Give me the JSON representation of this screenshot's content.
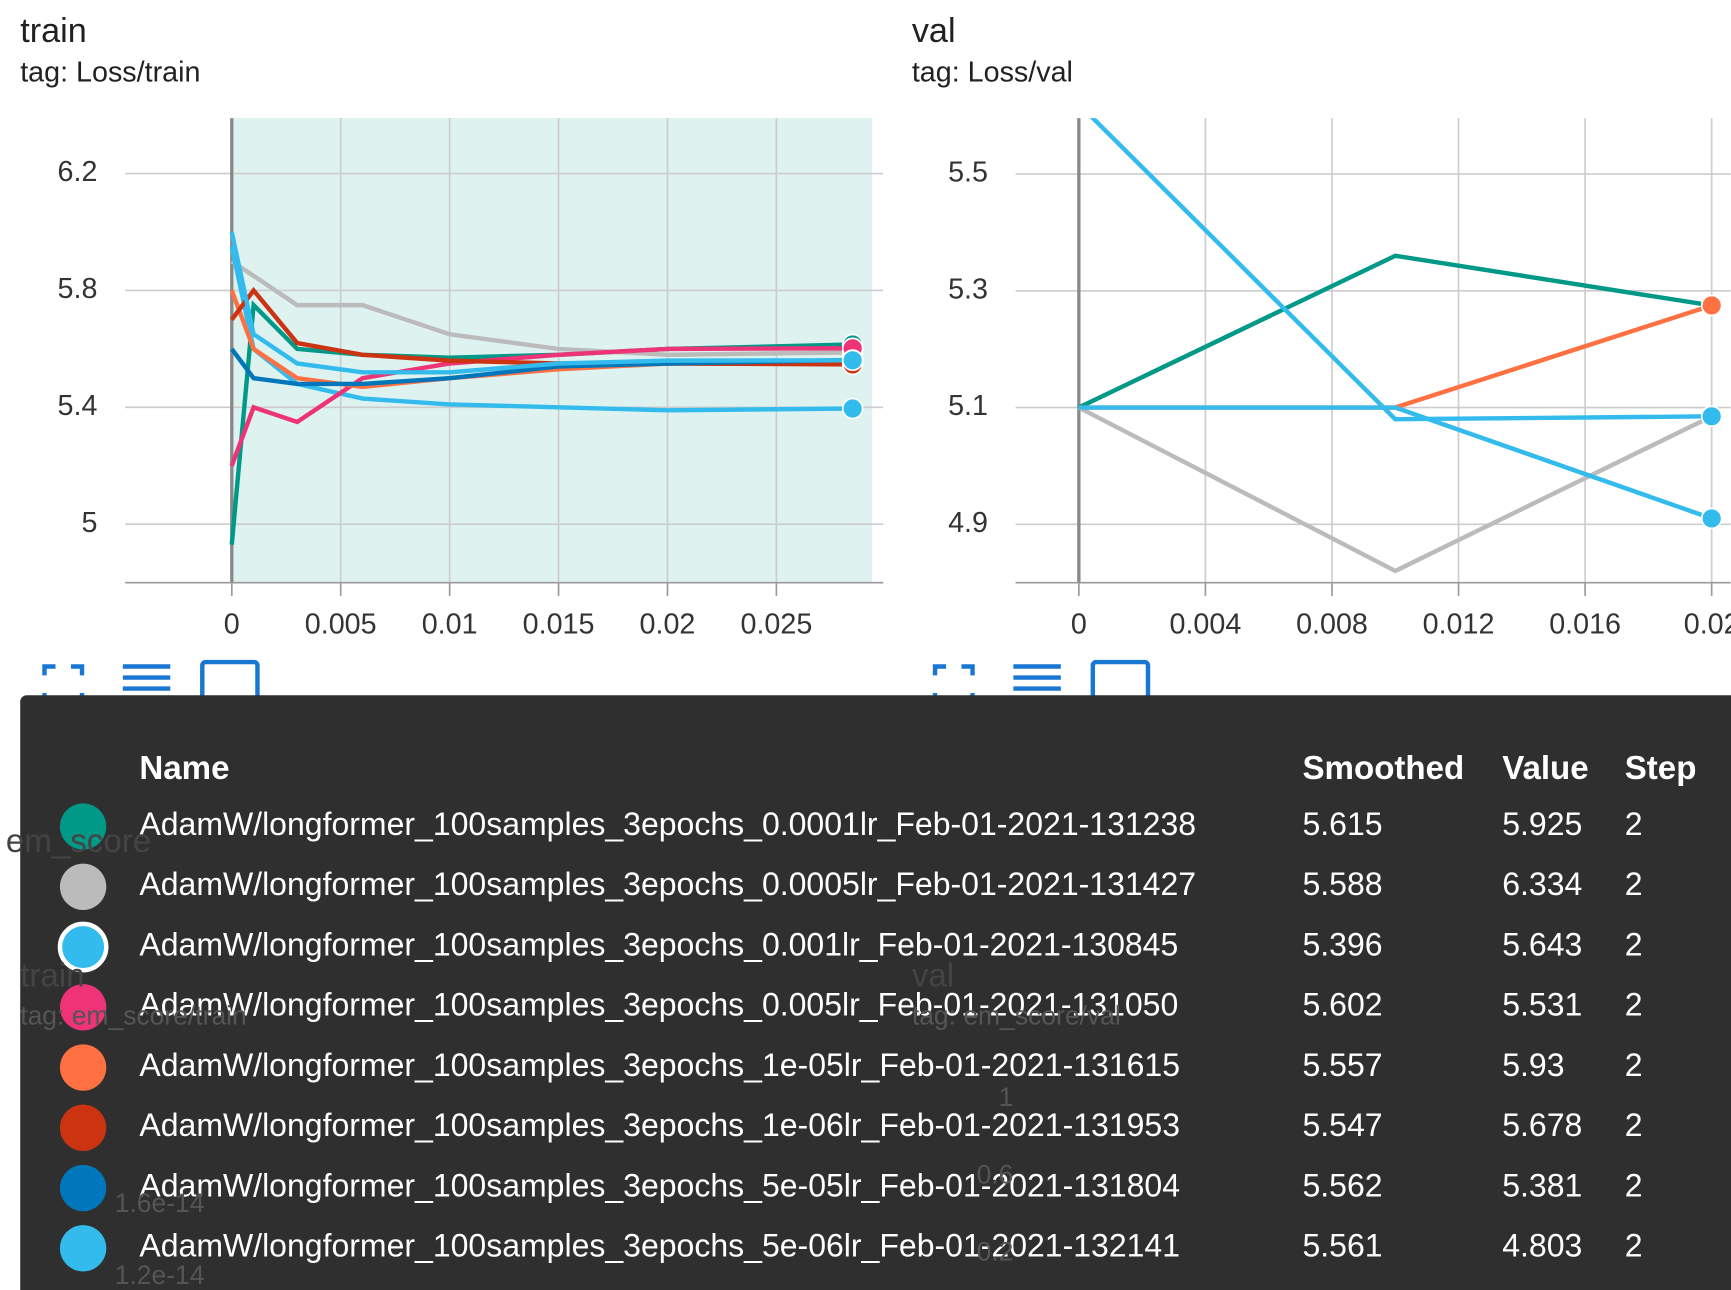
{
  "charts": [
    {
      "type": "line",
      "title": "train",
      "tag": "tag: Loss/train",
      "x": [
        0,
        0.001,
        0.003,
        0.006,
        0.01,
        0.015,
        0.02,
        0.0285
      ],
      "xlim": [
        -0.0049,
        0.0299
      ],
      "ylim": [
        4.8,
        6.39
      ],
      "xticks": [
        0,
        0.005,
        0.01,
        0.015,
        0.02,
        0.025
      ],
      "yticks": [
        5,
        5.4,
        5.8,
        6.2
      ],
      "grid": true,
      "series": [
        {
          "color": "#009988",
          "values": [
            4.93,
            5.75,
            5.6,
            5.58,
            5.57,
            5.58,
            5.6,
            5.615
          ]
        },
        {
          "color": "#bbbbbb",
          "values": [
            5.9,
            5.85,
            5.75,
            5.75,
            5.65,
            5.6,
            5.58,
            5.588
          ]
        },
        {
          "color": "#33bbee",
          "values": [
            5.95,
            5.6,
            5.48,
            5.43,
            5.41,
            5.4,
            5.39,
            5.396
          ]
        },
        {
          "color": "#ee3377",
          "values": [
            5.2,
            5.4,
            5.35,
            5.5,
            5.55,
            5.58,
            5.6,
            5.602
          ]
        },
        {
          "color": "#ff7043",
          "values": [
            5.8,
            5.6,
            5.5,
            5.47,
            5.5,
            5.53,
            5.55,
            5.557
          ]
        },
        {
          "color": "#cc3311",
          "values": [
            5.7,
            5.8,
            5.62,
            5.58,
            5.56,
            5.55,
            5.55,
            5.547
          ]
        },
        {
          "color": "#0077bb",
          "values": [
            5.6,
            5.5,
            5.48,
            5.48,
            5.5,
            5.54,
            5.55,
            5.562
          ]
        },
        {
          "color": "#33bbee",
          "values": [
            6.0,
            5.65,
            5.55,
            5.52,
            5.52,
            5.55,
            5.56,
            5.561
          ]
        }
      ]
    },
    {
      "type": "line",
      "title": "val",
      "tag": "tag: Loss/val",
      "x": [
        0,
        0.01,
        0.02
      ],
      "xlim": [
        -0.002,
        0.0206
      ],
      "ylim": [
        4.8,
        5.596
      ],
      "xticks": [
        0,
        0.004,
        0.008,
        0.012,
        0.016,
        0.02
      ],
      "yticks": [
        4.9,
        5.1,
        5.3,
        5.5
      ],
      "grid": true,
      "series": [
        {
          "color": "#009988",
          "values": [
            5.1,
            5.36,
            5.275
          ]
        },
        {
          "color": "#bbbbbb",
          "values": [
            5.1,
            4.82,
            5.085
          ]
        },
        {
          "color": "#33bbee",
          "values": [
            5.62,
            5.08,
            5.085
          ]
        },
        {
          "color": "#ff7043",
          "values": [
            5.1,
            5.1,
            5.275
          ]
        },
        {
          "color": "#33bbee",
          "values": [
            5.1,
            5.1,
            4.91
          ]
        }
      ]
    }
  ],
  "background_card": {
    "heading": "em_score",
    "left_title": "train",
    "left_tag": "tag: em_score/train",
    "right_title": "val",
    "right_tag": "tag: em_score/val",
    "left_ticks": [
      "1.6e-14",
      "1.2e-14"
    ],
    "right_ticks": [
      "1",
      "0.6",
      "0.2"
    ]
  },
  "tooltip": {
    "header": [
      "Name",
      "Smoothed",
      "Value",
      "Step"
    ],
    "rows": [
      {
        "color": "#009988",
        "name": "AdamW/longformer_100samples_3epochs_0.0001lr_Feb-01-2021-131238",
        "smoothed": 5.615,
        "value": 5.925,
        "step": 2
      },
      {
        "color": "#bbbbbb",
        "name": "AdamW/longformer_100samples_3epochs_0.0005lr_Feb-01-2021-131427",
        "smoothed": 5.588,
        "value": 6.334,
        "step": 2
      },
      {
        "color": "#33bbee",
        "name": "AdamW/longformer_100samples_3epochs_0.001lr_Feb-01-2021-130845",
        "smoothed": 5.396,
        "value": 5.643,
        "step": 2
      },
      {
        "color": "#ee3377",
        "name": "AdamW/longformer_100samples_3epochs_0.005lr_Feb-01-2021-131050",
        "smoothed": 5.602,
        "value": 5.531,
        "step": 2
      },
      {
        "color": "#ff7043",
        "name": "AdamW/longformer_100samples_3epochs_1e-05lr_Feb-01-2021-131615",
        "smoothed": 5.557,
        "value": 5.93,
        "step": 2
      },
      {
        "color": "#cc3311",
        "name": "AdamW/longformer_100samples_3epochs_1e-06lr_Feb-01-2021-131953",
        "smoothed": 5.547,
        "value": 5.678,
        "step": 2
      },
      {
        "color": "#0077bb",
        "name": "AdamW/longformer_100samples_3epochs_5e-05lr_Feb-01-2021-131804",
        "smoothed": 5.562,
        "value": 5.381,
        "step": 2
      },
      {
        "color": "#33bbee",
        "name": "AdamW/longformer_100samples_3epochs_5e-06lr_Feb-01-2021-132141",
        "smoothed": 5.561,
        "value": 4.803,
        "step": 2
      }
    ]
  }
}
